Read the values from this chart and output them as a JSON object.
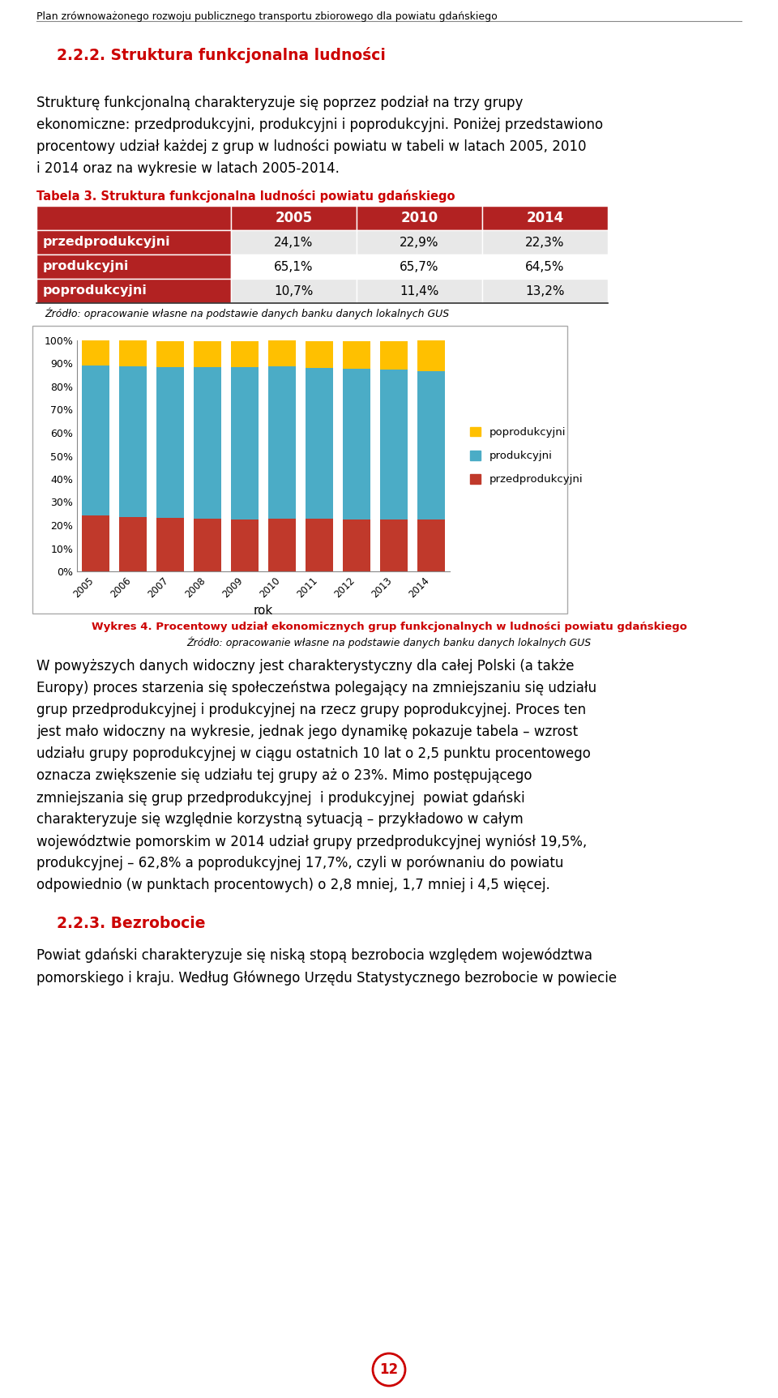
{
  "page_header": "Plan zrównoważonego rozwoju publicznego transportu zbiorowego dla powiatu gdańskiego",
  "section_title": "2.2.2. Struktura funkcjonalna ludności",
  "table_title": "Tabela 3. Struktura funkcjonalna ludności powiatu gdańskiego",
  "table_header": [
    "",
    "2005",
    "2010",
    "2014"
  ],
  "table_rows": [
    [
      "przedprodukcyjni",
      "24,1%",
      "22,9%",
      "22,3%"
    ],
    [
      "produkcyjni",
      "65,1%",
      "65,7%",
      "64,5%"
    ],
    [
      "poprodukcyjni",
      "10,7%",
      "11,4%",
      "13,2%"
    ]
  ],
  "table_source": "Źródło: opracowanie własne na podstawie danych banku danych lokalnych GUS",
  "chart_years": [
    2005,
    2006,
    2007,
    2008,
    2009,
    2010,
    2011,
    2012,
    2013,
    2014
  ],
  "przedprodukcyjni": [
    24.1,
    23.5,
    23.0,
    22.8,
    22.6,
    22.9,
    22.7,
    22.5,
    22.4,
    22.3
  ],
  "produkcyjni": [
    65.1,
    65.4,
    65.5,
    65.6,
    65.7,
    65.7,
    65.5,
    65.2,
    64.8,
    64.5
  ],
  "poprodukcyjni": [
    10.7,
    11.0,
    11.2,
    11.3,
    11.4,
    11.4,
    11.6,
    12.0,
    12.5,
    13.2
  ],
  "color_przedprodukcyjni": "#C0392B",
  "color_produkcyjni": "#4BACC6",
  "color_poprodukcyjni": "#FFC000",
  "chart_xlabel": "rok",
  "chart_caption_1": "Wykres 4. Procentowy udział ekonomicznych grup funkcjonalnych w ludności powiatu gdańskiego",
  "chart_caption_2": "Źródło: opracowanie własne na podstawie danych banku danych lokalnych GUS",
  "page_number": "12",
  "section_color": "#CC0000",
  "table_header_bg": "#B22222",
  "table_label_bg": "#B22222",
  "table_row1_bg": "#E8E8E8",
  "table_row2_bg": "#FFFFFF",
  "table_row3_bg": "#E8E8E8",
  "body1_lines": [
    "Strukturę funkcjonalną charakteryzuje się poprzez podział na trzy grupy",
    "ekonomiczne: przedprodukcyjni, produkcyjni i poprodukcyjni. Poniżej przedstawiono",
    "procentowy udział każdej z grup w ludności powiatu w tabeli w latach 2005, 2010",
    "i 2014 oraz na wykresie w latach 2005-2014."
  ],
  "body2_lines": [
    "W powyższych danych widoczny jest charakterystyczny dla całej Polski (a także",
    "Europy) proces starzenia się społeczeństwa polegający na zmniejszaniu się udziału",
    "grup przedprodukcyjnej i produkcyjnej na rzecz grupy poprodukcyjnej. Proces ten",
    "jest mało widoczny na wykresie, jednak jego dynamikę pokazuje tabela – wzrost",
    "udziału grupy poprodukcyjnej w ciągu ostatnich 10 lat o 2,5 punktu procentowego",
    "oznacza zwiększenie się udziału tej grupy aż o 23%. Mimo postępującego",
    "zmniejszania się grup przedprodukcyjnej  i produkcyjnej  powiat gdański",
    "charakteryzuje się względnie korzystną sytuacją – przykładowo w całym",
    "województwie pomorskim w 2014 udział grupy przedprodukcyjnej wyniósł 19,5%,",
    "produkcyjnej – 62,8% a poprodukcyjnej 17,7%, czyli w porównaniu do powiatu",
    "odpowiednio (w punktach procentowych) o 2,8 mniej, 1,7 mniej i 4,5 więcej."
  ],
  "section_title_2": "2.2.3. Bezrobocie",
  "body3_lines": [
    "Powiat gdański charakteryzuje się niską stopą bezrobocia względem województwa",
    "pomorskiego i kraju. Według Głównego Urzędu Statystycznego bezrobocie w powiecie"
  ]
}
